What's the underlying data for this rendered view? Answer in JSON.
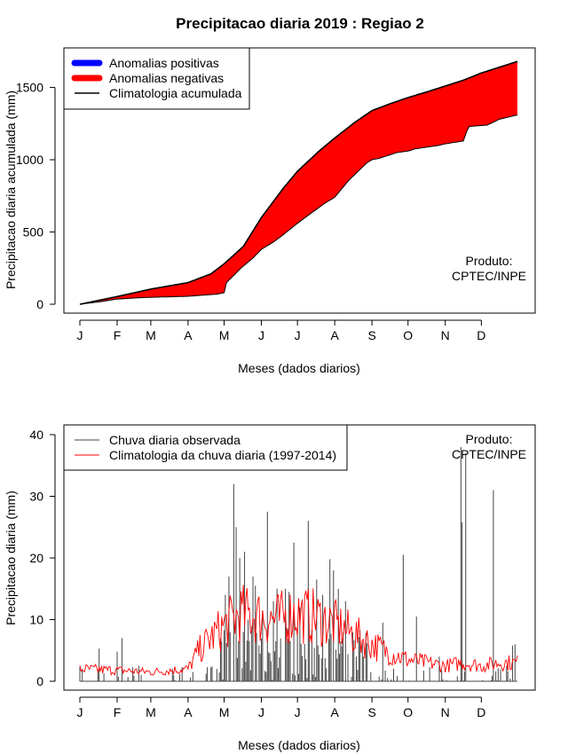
{
  "chart_data": [
    {
      "type": "area",
      "title": "Precipitacao diaria 2019 : Regiao 2",
      "xlabel": "Meses (dados diarios)",
      "ylabel": "Precipitacao diaria acumulada (mm)",
      "xlim": [
        1,
        365
      ],
      "ylim": [
        0,
        1700
      ],
      "yticks": [
        0,
        500,
        1000,
        1500
      ],
      "months": [
        "J",
        "F",
        "M",
        "A",
        "M",
        "J",
        "J",
        "A",
        "S",
        "O",
        "N",
        "D"
      ],
      "month_days": [
        1,
        32,
        60,
        91,
        121,
        152,
        182,
        213,
        244,
        274,
        305,
        335
      ],
      "legend": [
        "Anomalias positivas",
        "Anomalias negativas",
        "Climatologia acumulada"
      ],
      "legend_position": "top-left",
      "annotation": [
        "Produto:",
        "CPTEC/INPE"
      ],
      "colors": {
        "positive": "#0000ff",
        "negative": "#ff0000",
        "climatology": "#000000"
      },
      "climatology_knots": [
        [
          1,
          0
        ],
        [
          30,
          50
        ],
        [
          60,
          105
        ],
        [
          91,
          150
        ],
        [
          110,
          210
        ],
        [
          121,
          280
        ],
        [
          137,
          400
        ],
        [
          152,
          600
        ],
        [
          170,
          800
        ],
        [
          182,
          920
        ],
        [
          200,
          1060
        ],
        [
          213,
          1150
        ],
        [
          230,
          1260
        ],
        [
          244,
          1340
        ],
        [
          260,
          1390
        ],
        [
          274,
          1430
        ],
        [
          290,
          1470
        ],
        [
          305,
          1510
        ],
        [
          320,
          1550
        ],
        [
          335,
          1600
        ],
        [
          350,
          1640
        ],
        [
          365,
          1680
        ]
      ],
      "observed_knots": [
        [
          1,
          0
        ],
        [
          20,
          20
        ],
        [
          31,
          35
        ],
        [
          50,
          45
        ],
        [
          60,
          48
        ],
        [
          91,
          55
        ],
        [
          115,
          70
        ],
        [
          121,
          80
        ],
        [
          123,
          150
        ],
        [
          135,
          250
        ],
        [
          145,
          320
        ],
        [
          152,
          380
        ],
        [
          162,
          430
        ],
        [
          170,
          480
        ],
        [
          182,
          560
        ],
        [
          195,
          640
        ],
        [
          205,
          700
        ],
        [
          213,
          740
        ],
        [
          225,
          860
        ],
        [
          240,
          980
        ],
        [
          244,
          1000
        ],
        [
          250,
          1010
        ],
        [
          265,
          1050
        ],
        [
          274,
          1060
        ],
        [
          280,
          1075
        ],
        [
          300,
          1100
        ],
        [
          305,
          1110
        ],
        [
          320,
          1130
        ],
        [
          323,
          1200
        ],
        [
          325,
          1230
        ],
        [
          340,
          1240
        ],
        [
          350,
          1280
        ],
        [
          365,
          1310
        ]
      ]
    },
    {
      "type": "line",
      "xlabel": "Meses (dados diarios)",
      "ylabel": "Precipitacao diaria (mm)",
      "xlim": [
        1,
        365
      ],
      "ylim": [
        0,
        40
      ],
      "yticks": [
        0,
        10,
        20,
        30,
        40
      ],
      "months": [
        "J",
        "F",
        "M",
        "A",
        "M",
        "J",
        "J",
        "A",
        "S",
        "O",
        "N",
        "D"
      ],
      "month_days": [
        1,
        32,
        60,
        91,
        121,
        152,
        182,
        213,
        244,
        274,
        305,
        335
      ],
      "legend": [
        "Chuva diaria observada",
        "Climatologia da chuva diaria (1997-2014)"
      ],
      "legend_position": "top-left",
      "annotation": [
        "Produto:",
        "CPTEC/INPE"
      ],
      "colors": {
        "observed": "#444444",
        "climatology": "#ff0000"
      },
      "observed_peaks": [
        [
          17,
          5.3
        ],
        [
          32,
          4.8
        ],
        [
          36,
          7
        ],
        [
          50,
          2.5
        ],
        [
          95,
          1.5
        ],
        [
          115,
          2
        ],
        [
          122,
          14
        ],
        [
          125,
          17
        ],
        [
          129,
          32
        ],
        [
          131,
          25
        ],
        [
          134,
          20
        ],
        [
          138,
          21
        ],
        [
          141,
          10
        ],
        [
          145,
          17
        ],
        [
          147,
          15.5
        ],
        [
          153,
          11.5
        ],
        [
          157,
          27.5
        ],
        [
          162,
          13
        ],
        [
          165,
          15
        ],
        [
          172,
          15
        ],
        [
          175,
          14.5
        ],
        [
          179,
          22.5
        ],
        [
          184,
          12
        ],
        [
          191,
          26
        ],
        [
          198,
          16.5
        ],
        [
          203,
          14
        ],
        [
          209,
          19.8
        ],
        [
          212,
          18
        ],
        [
          216,
          15
        ],
        [
          222,
          13
        ],
        [
          231,
          4
        ],
        [
          253,
          9.5
        ],
        [
          270,
          20.5
        ],
        [
          281,
          10.5
        ],
        [
          300,
          4
        ],
        [
          318,
          38
        ],
        [
          319,
          25.8
        ],
        [
          322,
          37
        ],
        [
          345,
          31
        ],
        [
          361,
          5.8
        ],
        [
          363,
          6
        ]
      ],
      "climatology_knots": [
        [
          1,
          2
        ],
        [
          30,
          1.8
        ],
        [
          60,
          1.5
        ],
        [
          91,
          2
        ],
        [
          100,
          5
        ],
        [
          110,
          7
        ],
        [
          121,
          9
        ],
        [
          135,
          11
        ],
        [
          150,
          10.5
        ],
        [
          165,
          10
        ],
        [
          180,
          11
        ],
        [
          195,
          10.5
        ],
        [
          210,
          9.5
        ],
        [
          225,
          8
        ],
        [
          244,
          6
        ],
        [
          260,
          4.5
        ],
        [
          274,
          3.5
        ],
        [
          290,
          3
        ],
        [
          305,
          2.5
        ],
        [
          320,
          3
        ],
        [
          335,
          2.5
        ],
        [
          350,
          3
        ],
        [
          365,
          3
        ]
      ]
    }
  ]
}
